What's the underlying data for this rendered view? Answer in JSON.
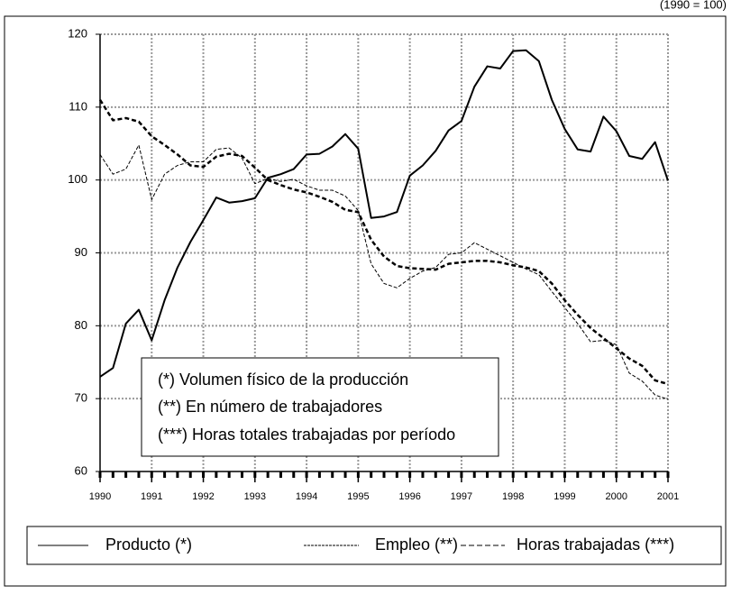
{
  "chart_data": {
    "type": "line",
    "subtitle": "(1990 = 100)",
    "notes": [
      "(*) Volumen físico de la producción",
      "(**) En número de trabajadores",
      "(***) Horas totales trabajadas por período"
    ],
    "x": [
      1990,
      1990.25,
      1990.5,
      1990.75,
      1991,
      1991.25,
      1991.5,
      1991.75,
      1992,
      1992.25,
      1992.5,
      1992.75,
      1993,
      1993.25,
      1993.5,
      1993.75,
      1994,
      1994.25,
      1994.5,
      1994.75,
      1995,
      1995.25,
      1995.5,
      1995.75,
      1996,
      1996.25,
      1996.5,
      1996.75,
      1997,
      1997.25,
      1997.5,
      1997.75,
      1998,
      1998.25,
      1998.5,
      1998.75,
      1999,
      1999.25,
      1999.5,
      1999.75,
      2000,
      2000.25,
      2000.5,
      2000.75,
      2001
    ],
    "series": [
      {
        "name": "Producto (*)",
        "color": "#000000",
        "line_style": "solid",
        "values": [
          73,
          74.2,
          80.3,
          82.2,
          78,
          83.5,
          88,
          91.5,
          94.5,
          97.6,
          96.9,
          97.1,
          97.5,
          100.3,
          100.8,
          101.5,
          103.5,
          103.6,
          104.6,
          106.3,
          104.3,
          94.8,
          95,
          95.6,
          100.6,
          102,
          104,
          106.8,
          108.1,
          112.8,
          115.6,
          115.3,
          117.7,
          117.8,
          116.3,
          111,
          107,
          104.2,
          103.9,
          108.7,
          106.7,
          103.3,
          102.9,
          105.2,
          99.9
        ]
      },
      {
        "name": "Empleo (**)",
        "color": "#000000",
        "line_style": "dotted",
        "values": [
          103.5,
          100.8,
          101.5,
          104.8,
          97.3,
          100.8,
          102,
          102.5,
          102.5,
          104.2,
          104.4,
          103,
          99.5,
          100.2,
          99.8,
          100.1,
          99.2,
          98.6,
          98.6,
          97.8,
          95.8,
          88.5,
          85.8,
          85.2,
          86.5,
          87.5,
          88,
          89.8,
          90,
          91.4,
          90.5,
          89.6,
          88.7,
          87.8,
          87,
          84.7,
          82.5,
          80.3,
          77.8,
          78,
          77.4,
          73.5,
          72.4,
          70.5,
          69.9
        ]
      },
      {
        "name": "Horas trabajadas (***)",
        "color": "#000000",
        "line_style": "dashed",
        "values": [
          111,
          108.2,
          108.5,
          108,
          106,
          104.8,
          103.5,
          102,
          101.8,
          103.2,
          103.6,
          103.3,
          101.7,
          100,
          99.3,
          98.7,
          98.3,
          97.7,
          97,
          95.9,
          95.6,
          91.8,
          89.5,
          88.2,
          87.9,
          87.8,
          87.7,
          88.5,
          88.7,
          88.9,
          88.9,
          88.7,
          88.3,
          88,
          87.5,
          85.8,
          83.5,
          81.5,
          79.7,
          78.3,
          76.9,
          75.5,
          74.5,
          72.5,
          72
        ]
      }
    ],
    "xlim": [
      1990,
      2001
    ],
    "xticks": [
      1990,
      1991,
      1992,
      1993,
      1994,
      1995,
      1996,
      1997,
      1998,
      1999,
      2000,
      2001
    ],
    "ylim": [
      60,
      120
    ],
    "yticks": [
      60,
      70,
      80,
      90,
      100,
      110,
      120
    ],
    "grid": true,
    "legend": "bottom"
  }
}
